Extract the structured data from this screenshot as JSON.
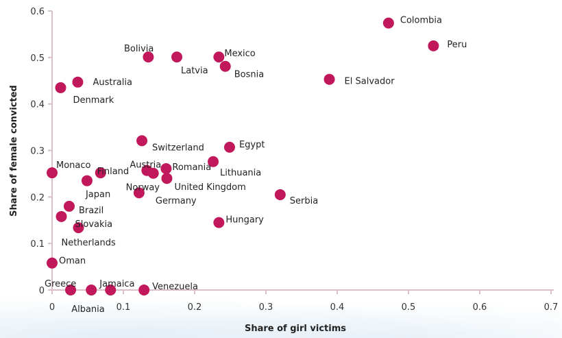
{
  "chart_data": {
    "type": "scatter",
    "xlabel": "Share of girl victims",
    "ylabel": "Share of female convicted",
    "xlim": [
      0,
      0.7
    ],
    "ylim": [
      0,
      0.6
    ],
    "xticks": [
      "0",
      "0.1",
      "0.2",
      "0.3",
      "0.4",
      "0.5",
      "0.6",
      "0.7"
    ],
    "yticks": [
      "0",
      "0.1",
      "0.2",
      "0.3",
      "0.4",
      "0.5",
      "0.6"
    ],
    "grid": false,
    "colors": {
      "point": "#c0185a",
      "axis": "#d9bfc9"
    },
    "points": [
      {
        "label": "Colombia",
        "x": 0.472,
        "y": 0.574
      },
      {
        "label": "Peru",
        "x": 0.535,
        "y": 0.525
      },
      {
        "label": "El Salvador",
        "x": 0.389,
        "y": 0.453
      },
      {
        "label": "Bolivia",
        "x": 0.135,
        "y": 0.501
      },
      {
        "label": "Latvia",
        "x": 0.175,
        "y": 0.501
      },
      {
        "label": "Mexico",
        "x": 0.234,
        "y": 0.501
      },
      {
        "label": "Bosnia",
        "x": 0.243,
        "y": 0.481
      },
      {
        "label": "Australia",
        "x": 0.036,
        "y": 0.447
      },
      {
        "label": "Denmark",
        "x": 0.012,
        "y": 0.435
      },
      {
        "label": "Switzerland",
        "x": 0.126,
        "y": 0.321
      },
      {
        "label": "Egypt",
        "x": 0.249,
        "y": 0.307
      },
      {
        "label": "Lithuania",
        "x": 0.226,
        "y": 0.276
      },
      {
        "label": "Romania",
        "x": 0.16,
        "y": 0.261
      },
      {
        "label": "Austria",
        "x": 0.133,
        "y": 0.257
      },
      {
        "label": "Norway",
        "x": 0.142,
        "y": 0.251
      },
      {
        "label": "United Kingdom",
        "x": 0.161,
        "y": 0.24
      },
      {
        "label": "Germany",
        "x": 0.122,
        "y": 0.209
      },
      {
        "label": "Finland",
        "x": 0.068,
        "y": 0.252
      },
      {
        "label": "Monaco",
        "x": 0.0,
        "y": 0.252
      },
      {
        "label": "Japan",
        "x": 0.049,
        "y": 0.235
      },
      {
        "label": "Serbia",
        "x": 0.32,
        "y": 0.205
      },
      {
        "label": "Brazil",
        "x": 0.024,
        "y": 0.18
      },
      {
        "label": "Slovakia",
        "x": 0.013,
        "y": 0.158
      },
      {
        "label": "Netherlands",
        "x": 0.037,
        "y": 0.134
      },
      {
        "label": "Hungary",
        "x": 0.234,
        "y": 0.145
      },
      {
        "label": "Oman",
        "x": 0.0,
        "y": 0.058
      },
      {
        "label": "Greece",
        "x": 0.026,
        "y": 0.0
      },
      {
        "label": "Albania",
        "x": 0.055,
        "y": 0.0
      },
      {
        "label": "Jamaica",
        "x": 0.082,
        "y": 0.0
      },
      {
        "label": "Venezuela",
        "x": 0.129,
        "y": 0.0
      }
    ]
  }
}
